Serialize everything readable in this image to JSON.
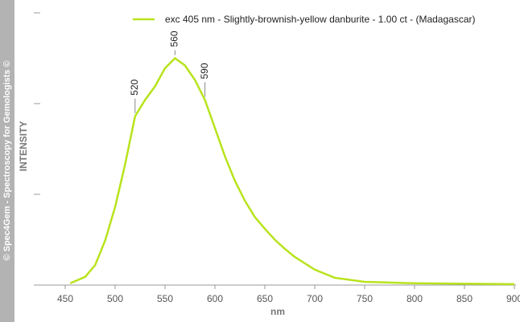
{
  "chart_data": {
    "type": "line",
    "side_label": "© Spec4Gem - Spectroscopy for Gemologists ©",
    "ylabel": "INTENSITY",
    "xlabel": "nm",
    "xlim": [
      425,
      900
    ],
    "xticks": [
      450,
      500,
      550,
      600,
      650,
      700,
      750,
      800,
      850,
      900
    ],
    "ylim": [
      0,
      3
    ],
    "yticks": [
      0,
      1,
      2,
      3
    ],
    "peaks": [
      520,
      560,
      590
    ],
    "series": [
      {
        "name": "exc 405 nm - Slightly-brownish-yellow danburite - 1.00 ct - (Madagascar)",
        "color": "#b8e31c",
        "x": [
          455,
          470,
          480,
          490,
          500,
          510,
          520,
          530,
          540,
          550,
          560,
          570,
          580,
          590,
          600,
          610,
          620,
          630,
          640,
          650,
          660,
          670,
          680,
          690,
          700,
          720,
          750,
          800,
          900
        ],
        "values": [
          0.02,
          0.09,
          0.22,
          0.49,
          0.86,
          1.33,
          1.86,
          2.04,
          2.19,
          2.39,
          2.5,
          2.42,
          2.26,
          2.04,
          1.73,
          1.42,
          1.15,
          0.93,
          0.75,
          0.62,
          0.5,
          0.4,
          0.31,
          0.24,
          0.17,
          0.08,
          0.035,
          0.02,
          0.01
        ]
      }
    ]
  }
}
